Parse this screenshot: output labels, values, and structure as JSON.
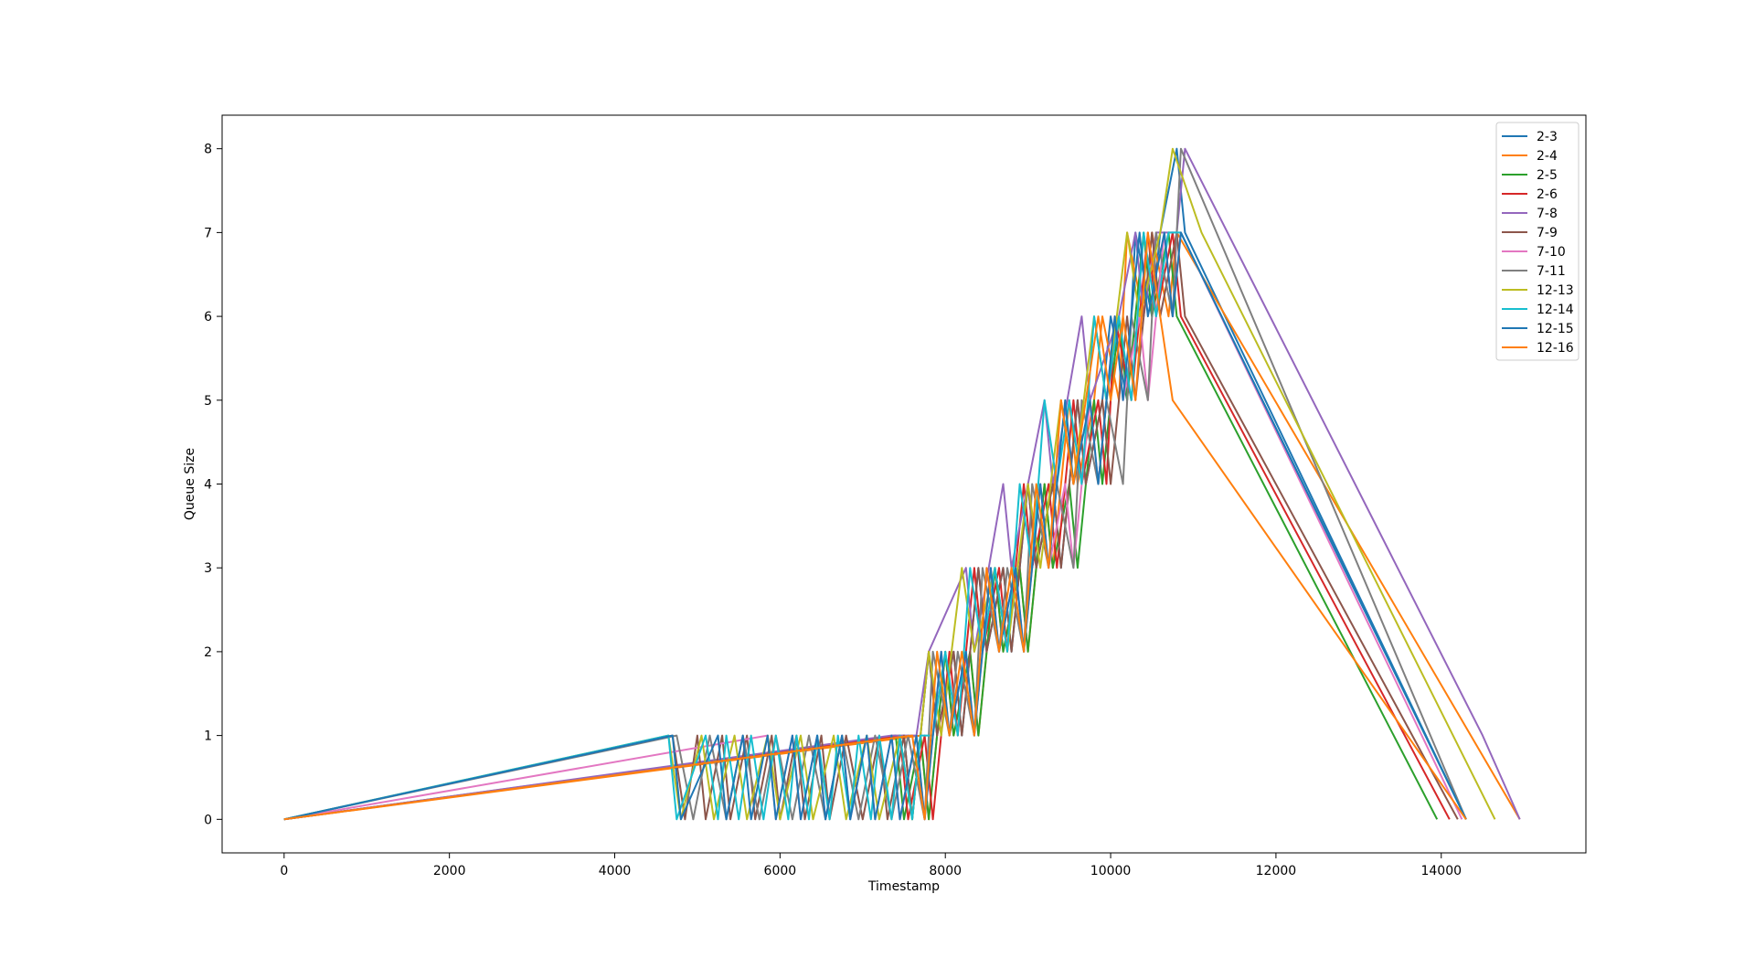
{
  "chart_data": {
    "type": "line",
    "title": "",
    "xlabel": "Timestamp",
    "ylabel": "Queue Size",
    "xlim": [
      -750,
      15750
    ],
    "ylim": [
      -0.4,
      8.4
    ],
    "xticks": [
      0,
      2000,
      4000,
      6000,
      8000,
      10000,
      12000,
      14000
    ],
    "yticks": [
      0,
      1,
      2,
      3,
      4,
      5,
      6,
      7,
      8
    ],
    "grid": false,
    "legend_position": "upper right",
    "series": [
      {
        "name": "2-3",
        "color": "#1f77b4",
        "x": [
          0,
          7500,
          7600,
          7800,
          7900,
          8100,
          8200,
          8400,
          8500,
          8700,
          8800,
          9000,
          9100,
          9300,
          9400,
          9600,
          9700,
          9900,
          10000,
          10200,
          10300,
          10500,
          10600,
          10800,
          10900,
          14300
        ],
        "y": [
          0,
          1,
          0,
          2,
          1,
          2,
          1,
          3,
          2,
          3,
          2,
          4,
          3,
          4,
          3,
          5,
          4,
          5,
          6,
          5,
          7,
          6,
          7,
          8,
          7,
          0
        ]
      },
      {
        "name": "2-4",
        "color": "#ff7f0e",
        "x": [
          0,
          7700,
          7800,
          8000,
          8100,
          8300,
          8400,
          8600,
          8700,
          8900,
          9000,
          9200,
          9300,
          9500,
          9600,
          9800,
          9900,
          10100,
          10200,
          10400,
          10500,
          10700,
          10800,
          14950
        ],
        "y": [
          0,
          1,
          0,
          2,
          1,
          2,
          1,
          3,
          2,
          3,
          2,
          4,
          3,
          5,
          4,
          5,
          6,
          5,
          7,
          6,
          7,
          6,
          7,
          0
        ]
      },
      {
        "name": "2-5",
        "color": "#2ca02c",
        "x": [
          0,
          7400,
          7500,
          7700,
          7800,
          8000,
          8100,
          8300,
          8400,
          8600,
          8700,
          8900,
          9000,
          9200,
          9300,
          9500,
          9600,
          9800,
          9900,
          10100,
          10200,
          10400,
          10500,
          10700,
          10800,
          13950
        ],
        "y": [
          0,
          1,
          0,
          1,
          0,
          2,
          1,
          2,
          1,
          3,
          2,
          3,
          2,
          4,
          3,
          4,
          3,
          5,
          4,
          6,
          5,
          7,
          6,
          7,
          6,
          0
        ]
      },
      {
        "name": "2-6",
        "color": "#d62728",
        "x": [
          0,
          7450,
          7550,
          7750,
          7850,
          8050,
          8150,
          8350,
          8450,
          8650,
          8750,
          8950,
          9050,
          9250,
          9350,
          9550,
          9650,
          9850,
          9950,
          10050,
          10250,
          10450,
          10550,
          10750,
          10850,
          14100
        ],
        "y": [
          0,
          1,
          0,
          1,
          0,
          2,
          1,
          3,
          2,
          3,
          2,
          4,
          3,
          4,
          3,
          5,
          4,
          5,
          4,
          6,
          5,
          7,
          6,
          7,
          6,
          0
        ]
      },
      {
        "name": "7-8",
        "color": "#9467bd",
        "x": [
          0,
          7350,
          7650,
          7800,
          8250,
          8350,
          8700,
          8800,
          9200,
          9300,
          9650,
          9750,
          10100,
          10300,
          10400,
          10550,
          10800,
          10900,
          14500,
          14950
        ],
        "y": [
          0,
          1,
          1,
          2,
          3,
          2,
          4,
          3,
          5,
          4,
          6,
          5,
          6,
          7,
          6,
          7,
          7,
          8,
          1,
          0
        ]
      },
      {
        "name": "7-9",
        "color": "#8c564b",
        "x": [
          0,
          4700,
          4850,
          5000,
          5100,
          5300,
          5400,
          5600,
          5700,
          5900,
          6000,
          6200,
          6300,
          6500,
          6600,
          6800,
          7000,
          7200,
          7300,
          7500,
          7600,
          7800,
          7900,
          8100,
          8200,
          8400,
          8500,
          8700,
          8800,
          9000,
          9100,
          9300,
          9400,
          9600,
          9700,
          9900,
          10000,
          10200,
          10300,
          10500,
          10600,
          10800,
          10900,
          14200
        ],
        "y": [
          0,
          1,
          0,
          1,
          0,
          1,
          0,
          1,
          0,
          1,
          0,
          1,
          0,
          1,
          0,
          1,
          0,
          1,
          0,
          1,
          0,
          2,
          1,
          2,
          1,
          3,
          2,
          3,
          2,
          4,
          3,
          4,
          3,
          5,
          4,
          5,
          4,
          6,
          5,
          7,
          6,
          7,
          6,
          0
        ]
      },
      {
        "name": "7-10",
        "color": "#e377c2",
        "x": [
          0,
          5850,
          5950,
          6150,
          6250,
          6450,
          6550,
          6750,
          6850,
          7050,
          7150,
          7350,
          7450,
          7650,
          7750,
          7950,
          8050,
          8250,
          8350,
          8550,
          8650,
          8850,
          8950,
          9150,
          9250,
          9450,
          9550,
          9750,
          9850,
          10050,
          10150,
          10350,
          10450,
          10650,
          10750,
          10850,
          14250
        ],
        "y": [
          0,
          1,
          0,
          1,
          0,
          1,
          0,
          1,
          0,
          1,
          0,
          1,
          0,
          1,
          0,
          2,
          1,
          2,
          1,
          3,
          2,
          3,
          2,
          4,
          3,
          4,
          3,
          5,
          4,
          6,
          5,
          6,
          5,
          7,
          6,
          7,
          0
        ]
      },
      {
        "name": "7-11",
        "color": "#7f7f7f",
        "x": [
          0,
          4750,
          4950,
          5150,
          5350,
          5550,
          5750,
          5950,
          6150,
          6350,
          6550,
          6750,
          6950,
          7150,
          7350,
          7550,
          7750,
          7850,
          8050,
          8150,
          8350,
          8450,
          8650,
          8750,
          8950,
          9050,
          9250,
          9350,
          9550,
          9650,
          9850,
          9950,
          10150,
          10250,
          10450,
          10550,
          10750,
          10850,
          14300
        ],
        "y": [
          0,
          1,
          0,
          1,
          0,
          1,
          0,
          1,
          0,
          1,
          0,
          1,
          0,
          1,
          0,
          1,
          0,
          2,
          1,
          2,
          1,
          3,
          2,
          3,
          2,
          4,
          3,
          4,
          3,
          5,
          4,
          5,
          4,
          6,
          5,
          7,
          6,
          8,
          0
        ]
      },
      {
        "name": "12-13",
        "color": "#bcbd22",
        "x": [
          0,
          4650,
          4800,
          5050,
          5200,
          5450,
          5600,
          5850,
          6000,
          6250,
          6400,
          6650,
          6800,
          7050,
          7200,
          7450,
          7600,
          7800,
          7950,
          8200,
          8350,
          8600,
          8750,
          9000,
          9150,
          9400,
          9550,
          9800,
          9950,
          10200,
          10350,
          10600,
          10750,
          11100,
          14650
        ],
        "y": [
          0,
          1,
          0,
          1,
          0,
          1,
          0,
          1,
          0,
          1,
          0,
          1,
          0,
          1,
          0,
          1,
          0,
          2,
          1,
          3,
          2,
          3,
          2,
          4,
          3,
          5,
          4,
          6,
          5,
          7,
          6,
          7,
          8,
          7,
          0
        ]
      },
      {
        "name": "12-14",
        "color": "#17becf",
        "x": [
          0,
          4650,
          4750,
          5100,
          5250,
          5350,
          5500,
          5650,
          5800,
          5950,
          6100,
          6200,
          6350,
          6450,
          6600,
          6700,
          6850,
          6950,
          7100,
          7200,
          7350,
          7450,
          7600,
          7700,
          7850,
          8000,
          8150,
          8300,
          8450,
          8600,
          8750,
          8900,
          9050,
          9200,
          9350,
          9500,
          9650,
          9800,
          9950,
          10100,
          10250,
          10400,
          10550,
          10700,
          10850,
          14300
        ],
        "y": [
          0,
          1,
          0,
          1,
          0,
          1,
          0,
          1,
          0,
          1,
          0,
          1,
          0,
          1,
          0,
          1,
          0,
          1,
          0,
          1,
          0,
          1,
          0,
          1,
          1,
          2,
          1,
          3,
          2,
          3,
          2,
          4,
          3,
          5,
          4,
          5,
          4,
          6,
          5,
          6,
          5,
          7,
          6,
          7,
          7,
          0
        ]
      },
      {
        "name": "12-15",
        "color": "#1f77b4",
        "x": [
          0,
          4700,
          4800,
          5250,
          5350,
          5550,
          5650,
          5850,
          5950,
          6150,
          6250,
          6450,
          6550,
          6750,
          6850,
          7050,
          7150,
          7350,
          7450,
          7650,
          7750,
          7950,
          8050,
          8250,
          8350,
          8550,
          8650,
          8850,
          8950,
          9150,
          9250,
          9450,
          9550,
          9750,
          9850,
          10050,
          10150,
          10350,
          10450,
          10650,
          10750,
          10850,
          14300
        ],
        "y": [
          0,
          1,
          0,
          1,
          0,
          1,
          0,
          1,
          0,
          1,
          0,
          1,
          0,
          1,
          0,
          1,
          0,
          1,
          0,
          1,
          0,
          2,
          1,
          2,
          1,
          3,
          2,
          3,
          2,
          4,
          3,
          5,
          4,
          5,
          4,
          6,
          5,
          7,
          6,
          7,
          6,
          7,
          0
        ]
      },
      {
        "name": "12-16",
        "color": "#ff7f0e",
        "x": [
          0,
          7600,
          7750,
          7900,
          8050,
          8200,
          8350,
          8500,
          8650,
          8800,
          8950,
          9100,
          9250,
          9400,
          9550,
          9700,
          9850,
          10000,
          10150,
          10300,
          10450,
          10600,
          10750,
          14300
        ],
        "y": [
          0,
          1,
          0,
          2,
          1,
          2,
          1,
          3,
          2,
          3,
          2,
          4,
          3,
          5,
          4,
          5,
          6,
          5,
          6,
          5,
          7,
          6,
          5,
          0
        ]
      }
    ]
  }
}
